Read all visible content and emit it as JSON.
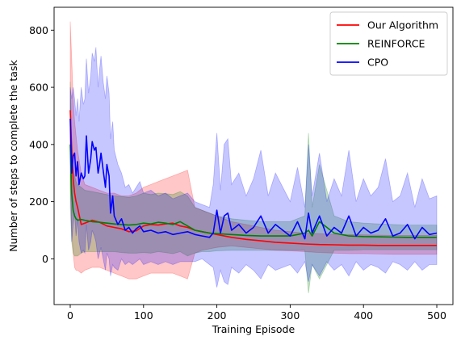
{
  "chart_data": {
    "type": "line",
    "xlabel": "Training Episode",
    "ylabel": "Number of steps to complete the task",
    "xlim": [
      -22,
      522
    ],
    "ylim": [
      -160,
      880
    ],
    "xticks": [
      0,
      100,
      200,
      300,
      400,
      500
    ],
    "yticks": [
      0,
      200,
      400,
      600,
      800
    ],
    "legend_position": "top-right",
    "series": [
      {
        "name": "Our Algorithm",
        "color": "#ff0000",
        "x": [
          0,
          2,
          4,
          6,
          8,
          10,
          15,
          20,
          30,
          40,
          50,
          60,
          70,
          80,
          90,
          100,
          110,
          120,
          130,
          140,
          150,
          160,
          170,
          180,
          190,
          200,
          220,
          240,
          260,
          280,
          300,
          320,
          340,
          360,
          380,
          400,
          420,
          440,
          460,
          480,
          500
        ],
        "values": [
          520,
          380,
          280,
          230,
          200,
          180,
          120,
          125,
          135,
          128,
          115,
          110,
          105,
          95,
          98,
          115,
          120,
          118,
          122,
          125,
          115,
          110,
          100,
          95,
          90,
          85,
          75,
          68,
          63,
          58,
          55,
          52,
          50,
          49,
          48,
          48,
          47,
          47,
          47,
          47,
          47
        ],
        "band_upper": [
          830,
          700,
          560,
          480,
          430,
          380,
          300,
          260,
          250,
          240,
          230,
          230,
          220,
          220,
          230,
          250,
          260,
          270,
          280,
          290,
          300,
          310,
          180,
          170,
          160,
          150,
          130,
          120,
          110,
          100,
          95,
          90,
          88,
          86,
          85,
          84,
          83,
          82,
          82,
          82,
          82
        ],
        "band_lower": [
          260,
          100,
          20,
          -30,
          -40,
          -40,
          -50,
          -40,
          -30,
          -30,
          -40,
          -50,
          -60,
          -70,
          -70,
          -60,
          -50,
          -50,
          -50,
          -50,
          -60,
          -70,
          20,
          30,
          35,
          40,
          45,
          40,
          35,
          30,
          28,
          25,
          22,
          20,
          18,
          18,
          17,
          16,
          16,
          16,
          16
        ]
      },
      {
        "name": "REINFORCE",
        "color": "#008000",
        "x": [
          0,
          2,
          4,
          6,
          8,
          10,
          15,
          20,
          30,
          40,
          50,
          60,
          70,
          80,
          90,
          100,
          110,
          120,
          130,
          140,
          150,
          160,
          170,
          180,
          190,
          200,
          220,
          240,
          260,
          280,
          300,
          310,
          320,
          325,
          330,
          340,
          360,
          380,
          400,
          420,
          440,
          460,
          480,
          500
        ],
        "values": [
          400,
          230,
          170,
          150,
          140,
          135,
          138,
          135,
          130,
          128,
          125,
          122,
          120,
          118,
          120,
          125,
          122,
          128,
          125,
          120,
          130,
          115,
          100,
          95,
          90,
          88,
          85,
          82,
          80,
          80,
          80,
          85,
          90,
          100,
          80,
          130,
          90,
          80,
          78,
          77,
          76,
          75,
          75,
          75
        ],
        "band_upper": [
          620,
          420,
          330,
          290,
          270,
          260,
          250,
          240,
          235,
          230,
          225,
          220,
          218,
          215,
          220,
          230,
          225,
          230,
          228,
          225,
          235,
          220,
          180,
          170,
          160,
          150,
          140,
          135,
          130,
          130,
          130,
          140,
          150,
          440,
          180,
          330,
          150,
          130,
          125,
          122,
          120,
          118,
          118,
          118
        ],
        "band_lower": [
          180,
          60,
          20,
          10,
          10,
          10,
          20,
          25,
          25,
          25,
          25,
          25,
          22,
          20,
          20,
          22,
          20,
          25,
          22,
          18,
          25,
          10,
          20,
          25,
          25,
          28,
          30,
          30,
          30,
          30,
          30,
          30,
          30,
          -120,
          -20,
          -70,
          30,
          30,
          32,
          32,
          32,
          32,
          32,
          32
        ]
      },
      {
        "name": "CPO",
        "color": "#0000ff",
        "x": [
          0,
          2,
          4,
          6,
          8,
          10,
          12,
          15,
          18,
          20,
          22,
          25,
          28,
          30,
          33,
          35,
          38,
          40,
          42,
          45,
          48,
          50,
          53,
          55,
          58,
          60,
          65,
          70,
          75,
          80,
          85,
          90,
          95,
          100,
          110,
          120,
          130,
          140,
          150,
          160,
          170,
          180,
          190,
          195,
          200,
          205,
          210,
          215,
          220,
          230,
          240,
          250,
          260,
          270,
          280,
          290,
          300,
          310,
          320,
          325,
          330,
          340,
          350,
          360,
          370,
          380,
          390,
          400,
          410,
          420,
          430,
          440,
          450,
          460,
          470,
          480,
          490,
          500
        ],
        "values": [
          490,
          300,
          360,
          370,
          290,
          340,
          260,
          300,
          280,
          290,
          430,
          300,
          350,
          410,
          380,
          390,
          300,
          330,
          370,
          310,
          250,
          330,
          290,
          160,
          220,
          150,
          120,
          140,
          100,
          110,
          90,
          105,
          115,
          95,
          100,
          90,
          95,
          85,
          90,
          95,
          85,
          80,
          75,
          90,
          170,
          90,
          150,
          160,
          100,
          120,
          90,
          110,
          150,
          90,
          120,
          100,
          80,
          130,
          70,
          160,
          90,
          150,
          80,
          110,
          90,
          150,
          80,
          110,
          90,
          100,
          140,
          80,
          90,
          120,
          70,
          110,
          85,
          90
        ],
        "band_upper": [
          600,
          560,
          600,
          560,
          500,
          560,
          480,
          600,
          540,
          560,
          700,
          580,
          640,
          720,
          690,
          740,
          600,
          660,
          710,
          620,
          560,
          640,
          580,
          420,
          480,
          380,
          330,
          300,
          250,
          260,
          230,
          250,
          270,
          230,
          240,
          220,
          230,
          210,
          220,
          230,
          200,
          190,
          180,
          260,
          440,
          240,
          400,
          420,
          260,
          300,
          220,
          280,
          380,
          220,
          300,
          250,
          200,
          320,
          180,
          400,
          220,
          370,
          200,
          280,
          220,
          380,
          200,
          280,
          220,
          250,
          350,
          200,
          220,
          300,
          180,
          280,
          210,
          220
        ],
        "band_lower": [
          380,
          60,
          120,
          160,
          80,
          140,
          60,
          20,
          30,
          20,
          120,
          30,
          60,
          100,
          80,
          60,
          0,
          20,
          40,
          0,
          -40,
          20,
          0,
          -60,
          -20,
          -30,
          -40,
          0,
          -20,
          -10,
          -20,
          -10,
          0,
          -20,
          -10,
          -20,
          -10,
          -20,
          -10,
          -10,
          -10,
          0,
          -20,
          -30,
          -100,
          -40,
          -80,
          -90,
          -30,
          -50,
          -20,
          -40,
          -70,
          -20,
          -40,
          -30,
          -20,
          -50,
          -10,
          -80,
          -20,
          -60,
          -10,
          -40,
          -20,
          -60,
          -10,
          -40,
          -20,
          -30,
          -50,
          -10,
          -20,
          -40,
          -10,
          -40,
          -20,
          -20
        ]
      }
    ]
  }
}
